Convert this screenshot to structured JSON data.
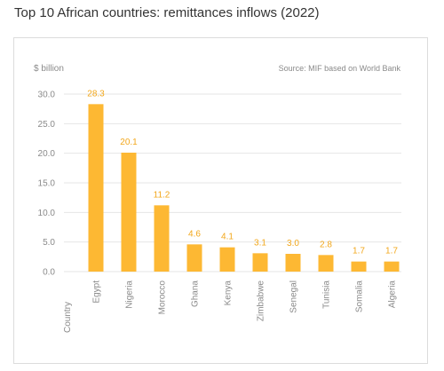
{
  "page_title": "Top 10 African countries: remittances inflows (2022)",
  "colors": {
    "bar": "#FDB833",
    "label": "#F2A71B",
    "axis_text": "#8a8a8a",
    "grid": "#e6e6e6",
    "card_border": "#dcdcdc"
  },
  "chart_data": {
    "type": "bar",
    "title": "Top 10 African countries: remittances inflows (2022)",
    "ylabel": "$ billion",
    "xlabel": "Country",
    "source": "Source: MIF based on World Bank",
    "ylim": [
      0,
      30
    ],
    "yticks": [
      "0.0",
      "5.0",
      "10.0",
      "15.0",
      "20.0",
      "25.0",
      "30.0"
    ],
    "grid": true,
    "categories": [
      "Egypt",
      "Nigeria",
      "Morocco",
      "Ghana",
      "Kenya",
      "Zimbabwe",
      "Senegal",
      "Tunisia",
      "Somalia",
      "Algeria"
    ],
    "values": [
      28.3,
      20.1,
      11.2,
      4.6,
      4.1,
      3.1,
      3.0,
      2.8,
      1.7,
      1.7
    ],
    "value_labels": [
      "28.3",
      "20.1",
      "11.2",
      "4.6",
      "4.1",
      "3.1",
      "3.0",
      "2.8",
      "1.7",
      "1.7"
    ]
  }
}
